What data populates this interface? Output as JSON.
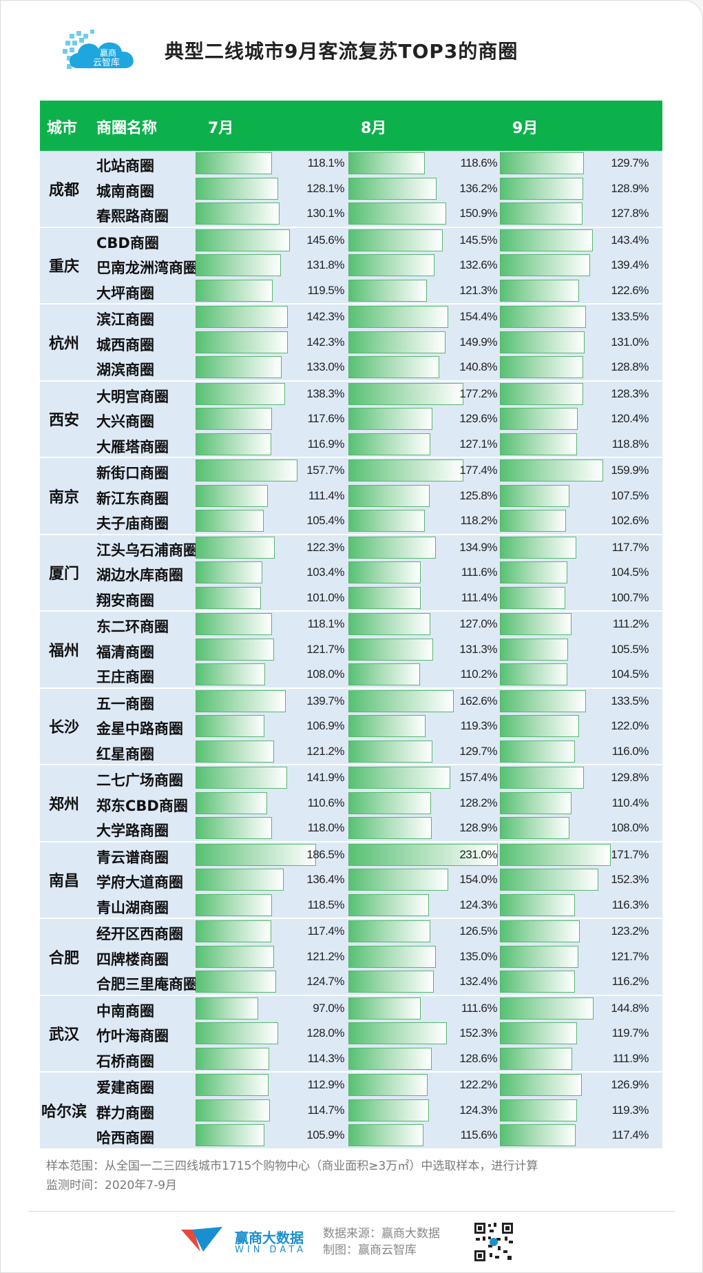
{
  "title": "典型二线城市9月客流复苏TOP3的商圈",
  "logo": {
    "line1": "赢商",
    "line2": "云智库"
  },
  "headers": {
    "city": "城市",
    "district": "商圈名称",
    "jul": "7月",
    "aug": "8月",
    "sep": "9月"
  },
  "chart_data": {
    "type": "table",
    "columns": [
      "7月",
      "8月",
      "9月"
    ],
    "groups": [
      {
        "city": "成都",
        "rows": [
          {
            "name": "北站商圈",
            "values": [
              118.1,
              118.6,
              129.7
            ],
            "labels": [
              "118.1%",
              "118.6%",
              "129.7%"
            ]
          },
          {
            "name": "城南商圈",
            "values": [
              128.1,
              136.2,
              128.9
            ],
            "labels": [
              "128.1%",
              "136.2%",
              "128.9%"
            ]
          },
          {
            "name": "春熙路商圈",
            "values": [
              130.1,
              150.9,
              127.8
            ],
            "labels": [
              "130.1%",
              "150.9%",
              "127.8%"
            ]
          }
        ]
      },
      {
        "city": "重庆",
        "rows": [
          {
            "name": "CBD商圈",
            "values": [
              145.6,
              145.5,
              143.4
            ],
            "labels": [
              "145.6%",
              "145.5%",
              "143.4%"
            ]
          },
          {
            "name": "巴南龙洲湾商圈",
            "values": [
              131.8,
              132.6,
              139.4
            ],
            "labels": [
              "131.8%",
              "132.6%",
              "139.4%"
            ]
          },
          {
            "name": "大坪商圈",
            "values": [
              119.5,
              121.3,
              122.6
            ],
            "labels": [
              "119.5%",
              "121.3%",
              "122.6%"
            ]
          }
        ]
      },
      {
        "city": "杭州",
        "rows": [
          {
            "name": "滨江商圈",
            "values": [
              142.3,
              154.4,
              133.5
            ],
            "labels": [
              "142.3%",
              "154.4%",
              "133.5%"
            ]
          },
          {
            "name": "城西商圈",
            "values": [
              142.3,
              149.9,
              131.0
            ],
            "labels": [
              "142.3%",
              "149.9%",
              "131.0%"
            ]
          },
          {
            "name": "湖滨商圈",
            "values": [
              133.0,
              140.8,
              128.8
            ],
            "labels": [
              "133.0%",
              "140.8%",
              "128.8%"
            ]
          }
        ]
      },
      {
        "city": "西安",
        "rows": [
          {
            "name": "大明宫商圈",
            "values": [
              138.3,
              177.2,
              128.3
            ],
            "labels": [
              "138.3%",
              "177.2%",
              "128.3%"
            ]
          },
          {
            "name": "大兴商圈",
            "values": [
              117.6,
              129.6,
              120.4
            ],
            "labels": [
              "117.6%",
              "129.6%",
              "120.4%"
            ]
          },
          {
            "name": "大雁塔商圈",
            "values": [
              116.9,
              127.1,
              118.8
            ],
            "labels": [
              "116.9%",
              "127.1%",
              "118.8%"
            ]
          }
        ]
      },
      {
        "city": "南京",
        "rows": [
          {
            "name": "新街口商圈",
            "values": [
              157.7,
              177.4,
              159.9
            ],
            "labels": [
              "157.7%",
              "177.4%",
              "159.9%"
            ]
          },
          {
            "name": "新江东商圈",
            "values": [
              111.4,
              125.8,
              107.5
            ],
            "labels": [
              "111.4%",
              "125.8%",
              "107.5%"
            ]
          },
          {
            "name": "夫子庙商圈",
            "values": [
              105.4,
              118.2,
              102.6
            ],
            "labels": [
              "105.4%",
              "118.2%",
              "102.6%"
            ]
          }
        ]
      },
      {
        "city": "厦门",
        "rows": [
          {
            "name": "江头乌石浦商圈",
            "values": [
              122.3,
              134.9,
              117.7
            ],
            "labels": [
              "122.3%",
              "134.9%",
              "117.7%"
            ]
          },
          {
            "name": "湖边水库商圈",
            "values": [
              103.4,
              111.6,
              104.5
            ],
            "labels": [
              "103.4%",
              "111.6%",
              "104.5%"
            ]
          },
          {
            "name": "翔安商圈",
            "values": [
              101.0,
              111.4,
              100.7
            ],
            "labels": [
              "101.0%",
              "111.4%",
              "100.7%"
            ]
          }
        ]
      },
      {
        "city": "福州",
        "rows": [
          {
            "name": "东二环商圈",
            "values": [
              118.1,
              127.0,
              111.2
            ],
            "labels": [
              "118.1%",
              "127.0%",
              "111.2%"
            ]
          },
          {
            "name": "福清商圈",
            "values": [
              121.7,
              131.3,
              105.5
            ],
            "labels": [
              "121.7%",
              "131.3%",
              "105.5%"
            ]
          },
          {
            "name": "王庄商圈",
            "values": [
              108.0,
              110.2,
              104.5
            ],
            "labels": [
              "108.0%",
              "110.2%",
              "104.5%"
            ]
          }
        ]
      },
      {
        "city": "长沙",
        "rows": [
          {
            "name": "五一商圈",
            "values": [
              139.7,
              162.6,
              133.5
            ],
            "labels": [
              "139.7%",
              "162.6%",
              "133.5%"
            ]
          },
          {
            "name": "金星中路商圈",
            "values": [
              106.9,
              119.3,
              122.0
            ],
            "labels": [
              "106.9%",
              "119.3%",
              "122.0%"
            ]
          },
          {
            "name": "红星商圈",
            "values": [
              121.2,
              129.7,
              116.0
            ],
            "labels": [
              "121.2%",
              "129.7%",
              "116.0%"
            ]
          }
        ]
      },
      {
        "city": "郑州",
        "rows": [
          {
            "name": "二七广场商圈",
            "values": [
              141.9,
              157.4,
              129.8
            ],
            "labels": [
              "141.9%",
              "157.4%",
              "129.8%"
            ]
          },
          {
            "name": "郑东CBD商圈",
            "values": [
              110.6,
              128.2,
              110.4
            ],
            "labels": [
              "110.6%",
              "128.2%",
              "110.4%"
            ]
          },
          {
            "name": "大学路商圈",
            "values": [
              118.0,
              128.9,
              108.0
            ],
            "labels": [
              "118.0%",
              "128.9%",
              "108.0%"
            ]
          }
        ]
      },
      {
        "city": "南昌",
        "rows": [
          {
            "name": "青云谱商圈",
            "values": [
              186.5,
              231.0,
              171.7
            ],
            "labels": [
              "186.5%",
              "231.0%",
              "171.7%"
            ]
          },
          {
            "name": "学府大道商圈",
            "values": [
              136.4,
              154.0,
              152.3
            ],
            "labels": [
              "136.4%",
              "154.0%",
              "152.3%"
            ]
          },
          {
            "name": "青山湖商圈",
            "values": [
              118.5,
              124.3,
              116.3
            ],
            "labels": [
              "118.5%",
              "124.3%",
              "116.3%"
            ]
          }
        ]
      },
      {
        "city": "合肥",
        "rows": [
          {
            "name": "经开区西商圈",
            "values": [
              117.4,
              126.5,
              123.2
            ],
            "labels": [
              "117.4%",
              "126.5%",
              "123.2%"
            ]
          },
          {
            "name": "四牌楼商圈",
            "values": [
              121.2,
              135.0,
              121.7
            ],
            "labels": [
              "121.2%",
              "135.0%",
              "121.7%"
            ]
          },
          {
            "name": "合肥三里庵商圈",
            "values": [
              124.7,
              132.4,
              116.2
            ],
            "labels": [
              "124.7%",
              "132.4%",
              "116.2%"
            ]
          }
        ]
      },
      {
        "city": "武汉",
        "rows": [
          {
            "name": "中南商圈",
            "values": [
              97.0,
              111.6,
              144.8
            ],
            "labels": [
              "97.0%",
              "111.6%",
              "144.8%"
            ]
          },
          {
            "name": "竹叶海商圈",
            "values": [
              128.0,
              152.3,
              119.7
            ],
            "labels": [
              "128.0%",
              "152.3%",
              "119.7%"
            ]
          },
          {
            "name": "石桥商圈",
            "values": [
              114.3,
              128.6,
              111.9
            ],
            "labels": [
              "114.3%",
              "128.6%",
              "111.9%"
            ]
          }
        ]
      },
      {
        "city": "哈尔滨",
        "rows": [
          {
            "name": "爱建商圈",
            "values": [
              112.9,
              122.2,
              126.9
            ],
            "labels": [
              "112.9%",
              "122.2%",
              "126.9%"
            ]
          },
          {
            "name": "群力商圈",
            "values": [
              114.7,
              124.3,
              119.3
            ],
            "labels": [
              "114.7%",
              "124.3%",
              "119.3%"
            ]
          },
          {
            "name": "哈西商圈",
            "values": [
              105.9,
              115.6,
              117.4
            ],
            "labels": [
              "105.9%",
              "115.6%",
              "117.4%"
            ]
          }
        ]
      }
    ]
  },
  "notes": {
    "sample": "样本范围：从全国一二三四线城市1715个购物中心（商业面积≥3万㎡）中选取样本，进行计算",
    "period": "监测时间：2020年7-9月"
  },
  "footer": {
    "brand_cn": "赢商大数据",
    "brand_en": "WIN DATA",
    "source": "数据来源：赢商大数据",
    "maker": "制图：赢商云智库"
  },
  "colors": {
    "header_bg": "#0db14b",
    "row_bg": "#dde9f5",
    "bar": "#57c173",
    "brand": "#1a8fd0"
  }
}
